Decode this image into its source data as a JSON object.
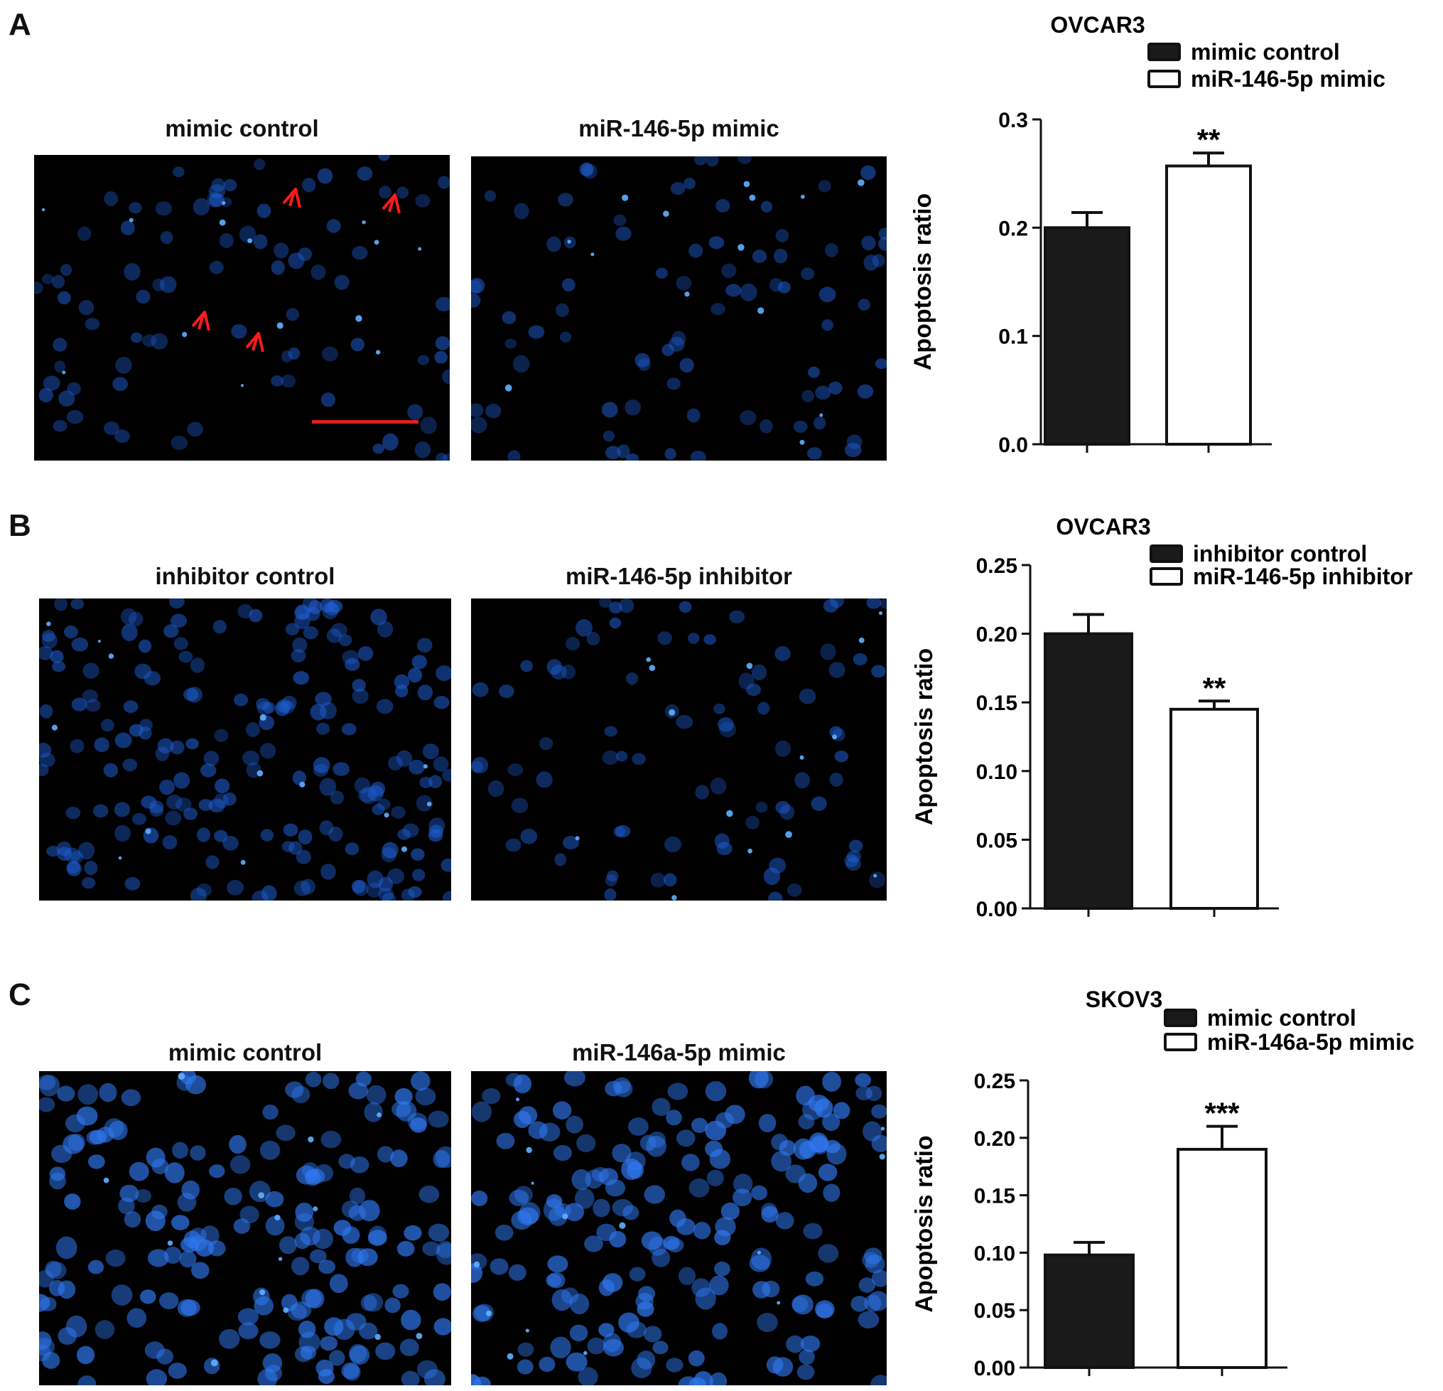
{
  "panels": [
    {
      "letter": "A",
      "images": [
        {
          "caption": "mimic control",
          "style": "dim",
          "arrows": true,
          "scale_bar": true
        },
        {
          "caption": "miR-146-5p mimic",
          "style": "dim",
          "arrows": false,
          "scale_bar": false
        }
      ]
    },
    {
      "letter": "B",
      "images": [
        {
          "caption": "inhibitor control",
          "style": "dense",
          "arrows": false,
          "scale_bar": false
        },
        {
          "caption": "miR-146-5p inhibitor",
          "style": "dim",
          "arrows": false,
          "scale_bar": false
        }
      ]
    },
    {
      "letter": "C",
      "images": [
        {
          "caption": "mimic control",
          "style": "bright",
          "arrows": false,
          "scale_bar": false
        },
        {
          "caption": "miR-146a-5p mimic",
          "style": "bright",
          "arrows": false,
          "scale_bar": false
        }
      ]
    }
  ],
  "colors": {
    "nucleus": "#1f5fd6",
    "nucleus_bright": "#2f78f0",
    "background": "#000000",
    "arrow": "#ff1a1a",
    "scale_bar": "#e02020"
  },
  "chart_data": [
    {
      "type": "bar",
      "title": "OVCAR3",
      "ylabel": "Apoptosis ratio",
      "ylim": [
        0,
        0.3
      ],
      "yticks": [
        "0.0",
        "0.1",
        "0.2",
        "0.3"
      ],
      "categories": [
        "mimic control",
        "miR-146-5p mimic"
      ],
      "values": [
        0.2,
        0.257
      ],
      "errors": [
        0.014,
        0.012
      ],
      "fills": [
        "#1a1a1a",
        "#ffffff"
      ],
      "significance": [
        "",
        "**"
      ],
      "legend": [
        "mimic control",
        "miR-146-5p mimic"
      ],
      "legend_position": "top-right"
    },
    {
      "type": "bar",
      "title": "OVCAR3",
      "ylabel": "Apoptosis ratio",
      "ylim": [
        0,
        0.25
      ],
      "yticks": [
        "0.00",
        "0.05",
        "0.10",
        "0.15",
        "0.20",
        "0.25"
      ],
      "categories": [
        "inhibitor control",
        "miR-146-5p inhibitor"
      ],
      "values": [
        0.2,
        0.145
      ],
      "errors": [
        0.014,
        0.006
      ],
      "fills": [
        "#1a1a1a",
        "#ffffff"
      ],
      "significance": [
        "",
        "**"
      ],
      "legend": [
        "inhibitor control",
        "miR-146-5p inhibitor"
      ],
      "legend_position": "top-right"
    },
    {
      "type": "bar",
      "title": "SKOV3",
      "ylabel": "Apoptosis ratio",
      "ylim": [
        0,
        0.25
      ],
      "yticks": [
        "0.00",
        "0.05",
        "0.10",
        "0.15",
        "0.20",
        "0.25"
      ],
      "categories": [
        "mimic control",
        "miR-146a-5p mimic"
      ],
      "values": [
        0.098,
        0.19
      ],
      "errors": [
        0.011,
        0.02
      ],
      "fills": [
        "#1a1a1a",
        "#ffffff"
      ],
      "significance": [
        "",
        "***"
      ],
      "legend": [
        "mimic control",
        "miR-146a-5p mimic"
      ],
      "legend_position": "top-right"
    }
  ]
}
